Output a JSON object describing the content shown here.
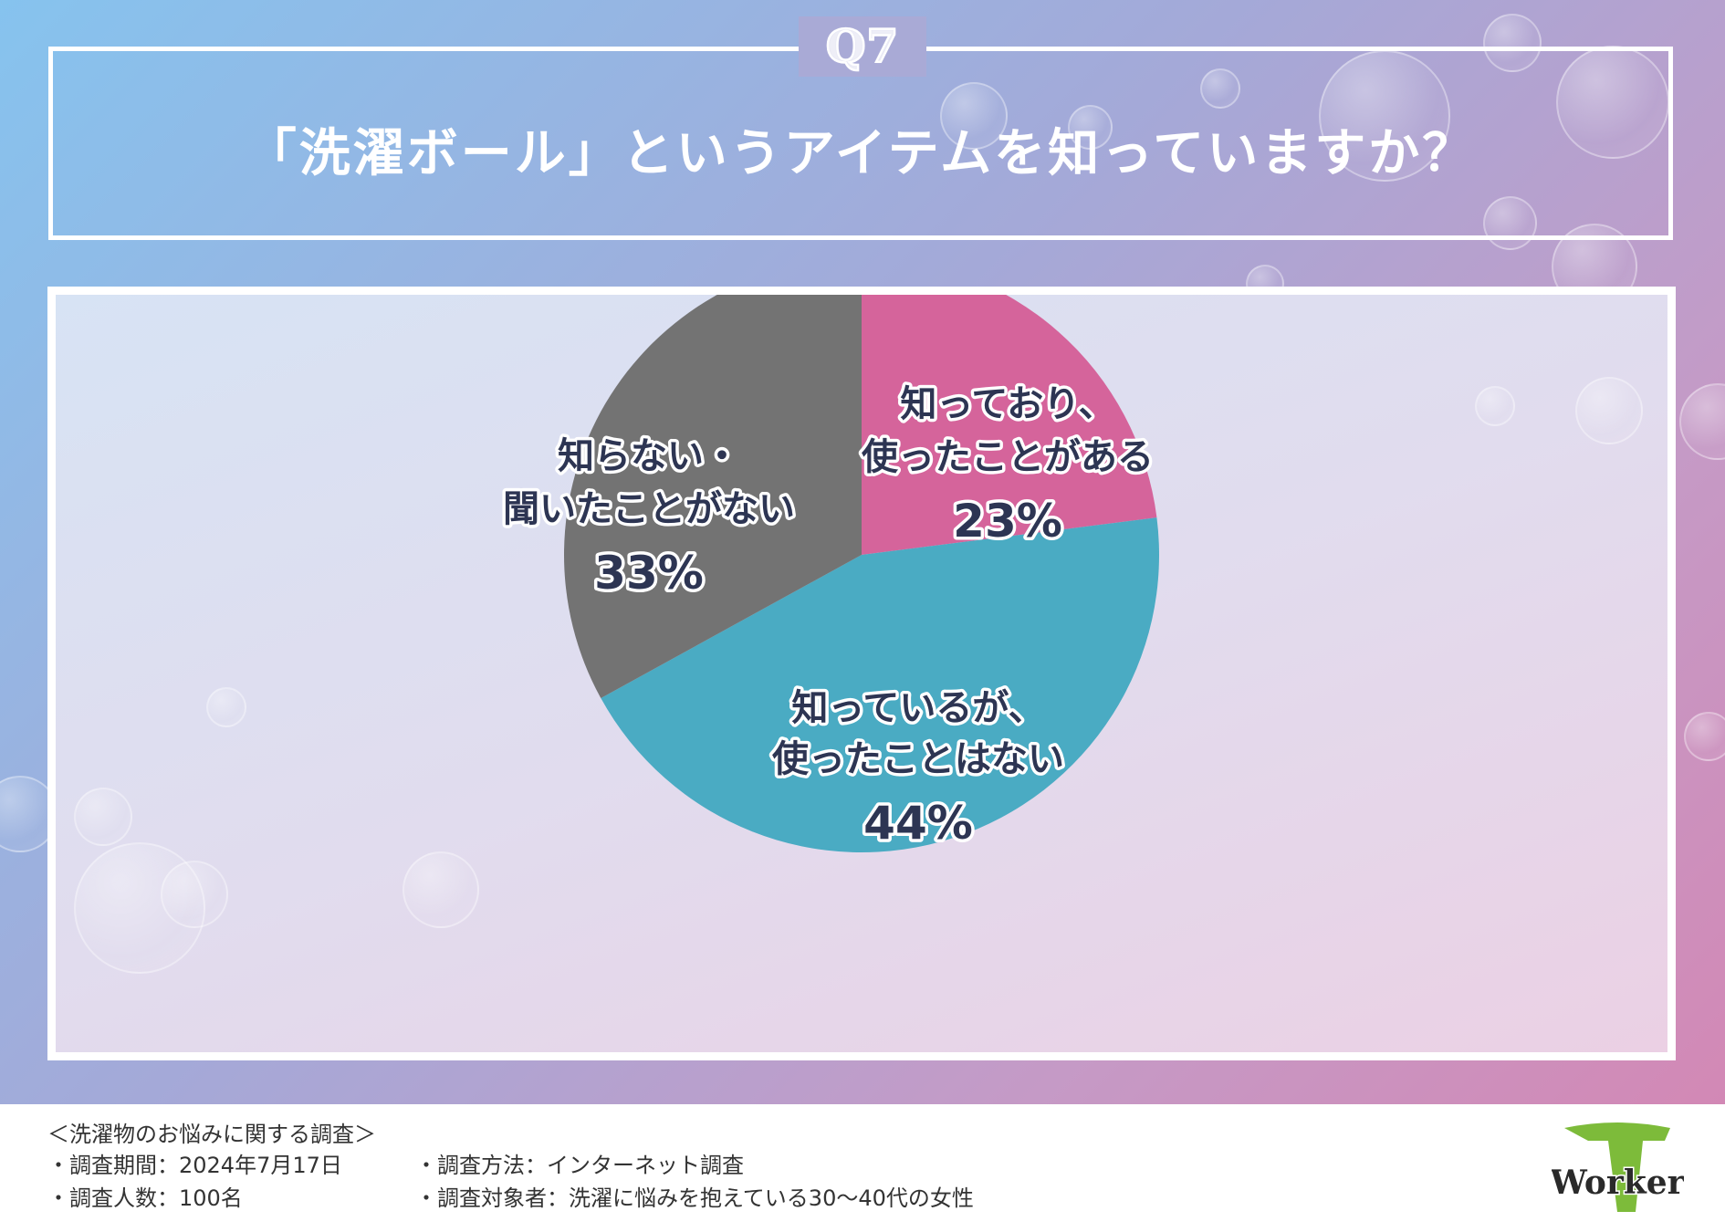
{
  "header": {
    "question_number": "Q7",
    "question": "「洗濯ボール」というアイテムを知っていますか？"
  },
  "chart_data": {
    "type": "pie",
    "title": "「洗濯ボール」というアイテムを知っていますか？",
    "start": "12 o'clock, clockwise",
    "slices": [
      {
        "label_lines": [
          "知っており、",
          "使ったことがある"
        ],
        "value": 23,
        "display": "23%",
        "color": "#d5649b"
      },
      {
        "label_lines": [
          "知っているが、",
          "使ったことはない"
        ],
        "value": 44,
        "display": "44%",
        "color": "#4aabc3"
      },
      {
        "label_lines": [
          "知らない・",
          "聞いたことがない"
        ],
        "value": 33,
        "display": "33%",
        "color": "#737373"
      }
    ]
  },
  "footer": {
    "survey_title": "＜洗濯物のお悩みに関する調査＞",
    "period": "・調査期間：2024年7月17日",
    "respondents": "・調査人数：100名",
    "method": "・調査方法：インターネット調査",
    "target": "・調査対象者：洗濯に悩みを抱えている30〜40代の女性",
    "logo_text": "Worker"
  },
  "colors": {
    "label_text": "#2d3553",
    "logo_green": "#7dbb3a"
  }
}
